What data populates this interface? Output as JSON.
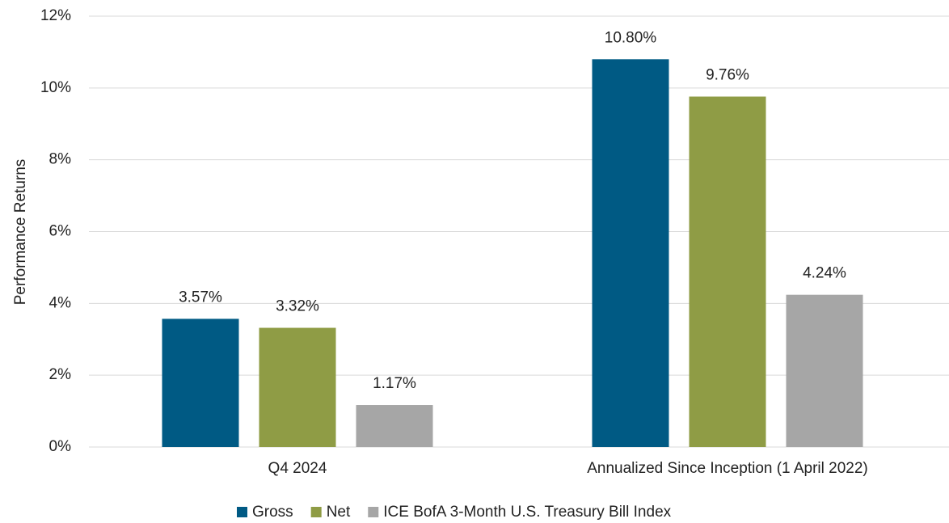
{
  "chart_data": {
    "type": "bar",
    "y_label": "Performance Returns",
    "categories": [
      "Q4 2024",
      "Annualized Since Inception (1 April 2022)"
    ],
    "series": [
      {
        "name": "Gross",
        "color": "#005a84",
        "values": [
          3.57,
          10.8
        ],
        "value_labels": [
          "3.57%",
          "10.80%"
        ]
      },
      {
        "name": "Net",
        "color": "#8f9c45",
        "values": [
          3.32,
          9.76
        ],
        "value_labels": [
          "3.32%",
          "9.76%"
        ]
      },
      {
        "name": "ICE BofA 3-Month U.S. Treasury Bill Index",
        "color": "#a6a6a6",
        "values": [
          1.17,
          4.24
        ],
        "value_labels": [
          "1.17%",
          "4.24%"
        ]
      }
    ],
    "ylim": [
      0,
      12
    ],
    "yticks": [
      {
        "value": 0,
        "label": "0%"
      },
      {
        "value": 2,
        "label": "2%"
      },
      {
        "value": 4,
        "label": "4%"
      },
      {
        "value": 6,
        "label": "6%"
      },
      {
        "value": 8,
        "label": "8%"
      },
      {
        "value": 10,
        "label": "10%"
      },
      {
        "value": 12,
        "label": "12%"
      }
    ],
    "grid": true,
    "legend": "bottom"
  }
}
